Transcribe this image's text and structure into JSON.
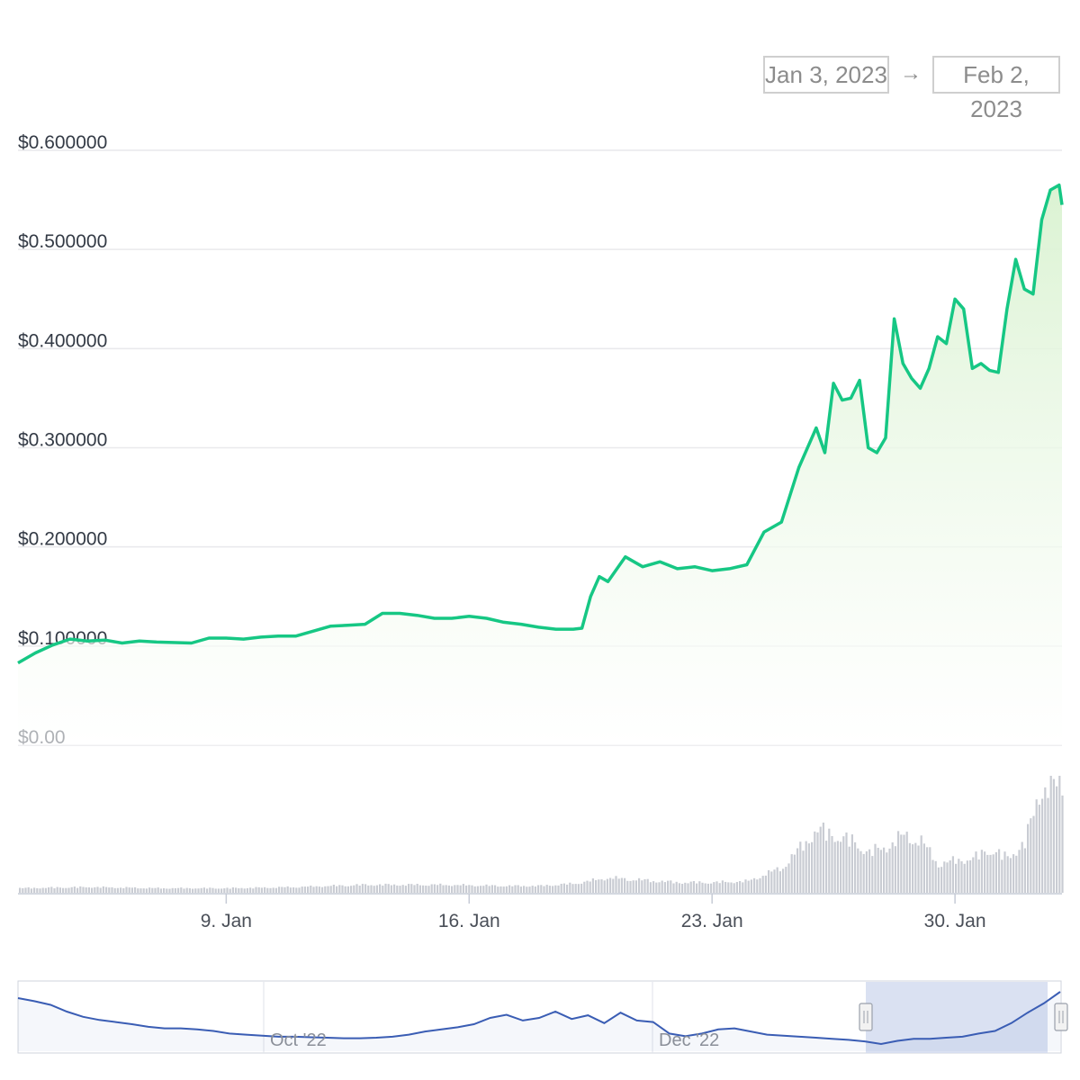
{
  "date_range": {
    "from": "Jan 3, 2023",
    "arrow": "→",
    "to": "Feb 2, 2023"
  },
  "colors": {
    "price_line": "#16c784",
    "area_top": "#d9f2d0",
    "grid": "#e9e9ec",
    "volume_bar": "#c9ccd3",
    "navigator_line": "#3a5db4",
    "navigator_mask": "#d3dcf0",
    "navigator_handle": "#f2f2f2"
  },
  "chart_data": {
    "type": "line",
    "title": "",
    "xlabel": "",
    "ylabel": "",
    "x_range": [
      "2023-01-03",
      "2023-02-02"
    ],
    "ylim": [
      0,
      0.6
    ],
    "y_ticks": [
      "$0.00",
      "$0.100000",
      "$0.200000",
      "$0.300000",
      "$0.400000",
      "$0.500000",
      "$0.600000"
    ],
    "x_ticks": [
      {
        "date": "2023-01-09",
        "label": "9. Jan"
      },
      {
        "date": "2023-01-16",
        "label": "16. Jan"
      },
      {
        "date": "2023-01-23",
        "label": "23. Jan"
      },
      {
        "date": "2023-01-30",
        "label": "30. Jan"
      }
    ],
    "grid": true,
    "series": [
      {
        "values": [
          [
            "2023-01-03",
            0.083
          ],
          [
            "2023-01-03T12:00",
            0.093
          ],
          [
            "2023-01-04",
            0.101
          ],
          [
            "2023-01-04T12:00",
            0.107
          ],
          [
            "2023-01-05",
            0.105
          ],
          [
            "2023-01-05T12:00",
            0.106
          ],
          [
            "2023-01-06",
            0.103
          ],
          [
            "2023-01-06T12:00",
            0.105
          ],
          [
            "2023-01-07",
            0.104
          ],
          [
            "2023-01-08",
            0.103
          ],
          [
            "2023-01-08T12:00",
            0.108
          ],
          [
            "2023-01-09",
            0.108
          ],
          [
            "2023-01-09T12:00",
            0.107
          ],
          [
            "2023-01-10",
            0.109
          ],
          [
            "2023-01-10T12:00",
            0.11
          ],
          [
            "2023-01-11",
            0.11
          ],
          [
            "2023-01-11T12:00",
            0.115
          ],
          [
            "2023-01-12",
            0.12
          ],
          [
            "2023-01-12T12:00",
            0.121
          ],
          [
            "2023-01-13",
            0.122
          ],
          [
            "2023-01-13T12:00",
            0.133
          ],
          [
            "2023-01-14",
            0.133
          ],
          [
            "2023-01-14T12:00",
            0.131
          ],
          [
            "2023-01-15",
            0.128
          ],
          [
            "2023-01-15T12:00",
            0.128
          ],
          [
            "2023-01-16",
            0.13
          ],
          [
            "2023-01-16T12:00",
            0.128
          ],
          [
            "2023-01-17",
            0.124
          ],
          [
            "2023-01-17T12:00",
            0.122
          ],
          [
            "2023-01-18",
            0.119
          ],
          [
            "2023-01-18T12:00",
            0.117
          ],
          [
            "2023-01-19",
            0.117
          ],
          [
            "2023-01-19T06:00",
            0.118
          ],
          [
            "2023-01-19T12:00",
            0.15
          ],
          [
            "2023-01-19T18:00",
            0.17
          ],
          [
            "2023-01-20",
            0.165
          ],
          [
            "2023-01-20T12:00",
            0.19
          ],
          [
            "2023-01-21",
            0.18
          ],
          [
            "2023-01-21T12:00",
            0.185
          ],
          [
            "2023-01-22",
            0.178
          ],
          [
            "2023-01-22T12:00",
            0.18
          ],
          [
            "2023-01-23",
            0.176
          ],
          [
            "2023-01-23T12:00",
            0.178
          ],
          [
            "2023-01-24",
            0.182
          ],
          [
            "2023-01-24T12:00",
            0.215
          ],
          [
            "2023-01-25",
            0.225
          ],
          [
            "2023-01-25T12:00",
            0.28
          ],
          [
            "2023-01-26",
            0.32
          ],
          [
            "2023-01-26T06:00",
            0.295
          ],
          [
            "2023-01-26T12:00",
            0.365
          ],
          [
            "2023-01-26T18:00",
            0.348
          ],
          [
            "2023-01-27",
            0.35
          ],
          [
            "2023-01-27T06:00",
            0.368
          ],
          [
            "2023-01-27T12:00",
            0.3
          ],
          [
            "2023-01-27T18:00",
            0.295
          ],
          [
            "2023-01-28",
            0.31
          ],
          [
            "2023-01-28T06:00",
            0.43
          ],
          [
            "2023-01-28T12:00",
            0.385
          ],
          [
            "2023-01-28T18:00",
            0.37
          ],
          [
            "2023-01-29",
            0.36
          ],
          [
            "2023-01-29T06:00",
            0.38
          ],
          [
            "2023-01-29T12:00",
            0.412
          ],
          [
            "2023-01-29T18:00",
            0.405
          ],
          [
            "2023-01-30",
            0.45
          ],
          [
            "2023-01-30T06:00",
            0.44
          ],
          [
            "2023-01-30T12:00",
            0.38
          ],
          [
            "2023-01-30T18:00",
            0.385
          ],
          [
            "2023-01-31",
            0.378
          ],
          [
            "2023-01-31T06:00",
            0.376
          ],
          [
            "2023-01-31T12:00",
            0.44
          ],
          [
            "2023-01-31T18:00",
            0.49
          ],
          [
            "2023-02-01",
            0.46
          ],
          [
            "2023-02-01T06:00",
            0.455
          ],
          [
            "2023-02-01T12:00",
            0.53
          ],
          [
            "2023-02-01T18:00",
            0.56
          ],
          [
            "2023-02-02",
            0.565
          ],
          [
            "2023-02-02T02:00",
            0.545
          ]
        ]
      }
    ],
    "volume": {
      "unit": "relative",
      "values": [
        [
          "2023-01-03",
          0.04
        ],
        [
          "2023-01-05",
          0.05
        ],
        [
          "2023-01-07",
          0.04
        ],
        [
          "2023-01-09",
          0.04
        ],
        [
          "2023-01-11",
          0.05
        ],
        [
          "2023-01-13",
          0.07
        ],
        [
          "2023-01-15",
          0.07
        ],
        [
          "2023-01-17",
          0.06
        ],
        [
          "2023-01-18",
          0.06
        ],
        [
          "2023-01-19",
          0.08
        ],
        [
          "2023-01-20",
          0.13
        ],
        [
          "2023-01-21",
          0.11
        ],
        [
          "2023-01-22",
          0.09
        ],
        [
          "2023-01-23",
          0.09
        ],
        [
          "2023-01-24",
          0.1
        ],
        [
          "2023-01-25",
          0.22
        ],
        [
          "2023-01-26",
          0.55
        ],
        [
          "2023-01-27",
          0.45
        ],
        [
          "2023-01-27T12:00",
          0.35
        ],
        [
          "2023-01-28",
          0.4
        ],
        [
          "2023-01-28T12:00",
          0.5
        ],
        [
          "2023-01-29",
          0.45
        ],
        [
          "2023-01-29T12:00",
          0.25
        ],
        [
          "2023-01-30",
          0.28
        ],
        [
          "2023-01-30T12:00",
          0.3
        ],
        [
          "2023-01-31",
          0.38
        ],
        [
          "2023-01-31T12:00",
          0.3
        ],
        [
          "2023-02-01",
          0.45
        ],
        [
          "2023-02-01T12:00",
          0.95
        ],
        [
          "2023-02-02",
          0.92
        ]
      ]
    },
    "navigator": {
      "x_ticks": [
        "Oct '22",
        "Dec '22"
      ],
      "selected_range": [
        "2023-01-03",
        "2023-02-02"
      ],
      "values_relative": [
        0.88,
        0.82,
        0.75,
        0.62,
        0.52,
        0.46,
        0.42,
        0.38,
        0.33,
        0.3,
        0.3,
        0.28,
        0.25,
        0.2,
        0.18,
        0.16,
        0.14,
        0.14,
        0.13,
        0.12,
        0.11,
        0.11,
        0.12,
        0.14,
        0.18,
        0.24,
        0.28,
        0.32,
        0.38,
        0.5,
        0.56,
        0.45,
        0.5,
        0.62,
        0.48,
        0.55,
        0.4,
        0.6,
        0.45,
        0.42,
        0.2,
        0.15,
        0.2,
        0.28,
        0.3,
        0.24,
        0.18,
        0.16,
        0.14,
        0.12,
        0.1,
        0.08,
        0.05,
        0.0,
        0.06,
        0.1,
        0.1,
        0.12,
        0.14,
        0.2,
        0.25,
        0.4,
        0.6,
        0.78,
        1.0
      ]
    }
  }
}
